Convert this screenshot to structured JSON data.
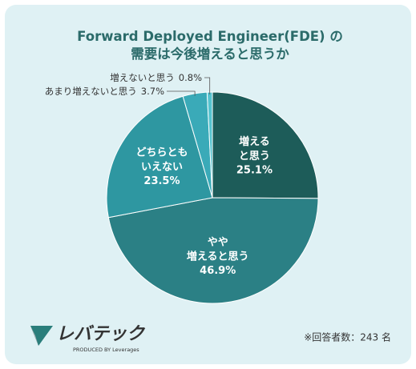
{
  "chart_data": {
    "type": "pie",
    "title": "Forward Deployed Engineer(FDE) の\n需要は今後増えると思うか",
    "categories": [
      "増える\nと思う",
      "やや\n増えると思う",
      "どちらとも\nいえない",
      "あまり増えないと思う",
      "増えないと思う"
    ],
    "values": [
      25.1,
      46.9,
      23.5,
      3.7,
      0.8
    ],
    "value_labels": [
      "25.1%",
      "46.9%",
      "23.5%",
      "3.7%",
      "0.8%"
    ],
    "colors": [
      "#1d5c59",
      "#2b8085",
      "#2e97a1",
      "#3aaab8",
      "#55c3cf"
    ],
    "logo": "レバテック",
    "logo_sub": "PRODUCED BY Leverages",
    "note": "※回答者数：243 名"
  }
}
